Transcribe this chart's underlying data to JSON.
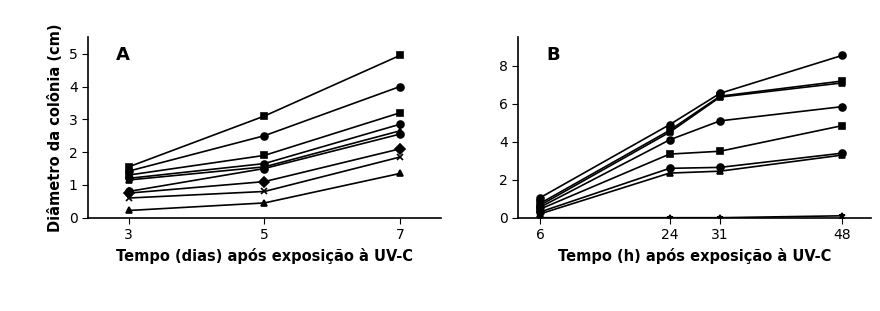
{
  "panel_A": {
    "label": "A",
    "x": [
      3,
      5,
      7
    ],
    "series": [
      {
        "y": [
          1.55,
          3.1,
          4.95
        ],
        "marker": "s"
      },
      {
        "y": [
          1.42,
          2.5,
          4.0
        ],
        "marker": "o"
      },
      {
        "y": [
          1.3,
          1.9,
          3.2
        ],
        "marker": "s"
      },
      {
        "y": [
          1.2,
          1.65,
          2.85
        ],
        "marker": "o"
      },
      {
        "y": [
          1.15,
          1.55,
          2.65
        ],
        "marker": "^"
      },
      {
        "y": [
          0.8,
          1.5,
          2.55
        ],
        "marker": "o"
      },
      {
        "y": [
          0.75,
          1.1,
          2.1
        ],
        "marker": "D"
      },
      {
        "y": [
          0.6,
          0.8,
          1.85
        ],
        "marker": "x"
      },
      {
        "y": [
          0.22,
          0.45,
          1.35
        ],
        "marker": "^"
      }
    ],
    "xlabel": "Tempo (dias) após exposição à UV-C",
    "ylabel": "Diâmetro da colônia (cm)",
    "ylim": [
      0,
      5.5
    ],
    "yticks": [
      0,
      1,
      2,
      3,
      4,
      5
    ],
    "xticks": [
      3,
      5,
      7
    ],
    "xlim": [
      2.4,
      7.6
    ]
  },
  "panel_B": {
    "label": "B",
    "x": [
      6,
      24,
      31,
      48
    ],
    "series": [
      {
        "y": [
          1.05,
          4.9,
          6.55,
          8.55
        ],
        "marker": "o"
      },
      {
        "y": [
          0.75,
          4.6,
          6.4,
          7.2
        ],
        "marker": "s"
      },
      {
        "y": [
          0.65,
          4.5,
          6.35,
          7.1
        ],
        "marker": "^"
      },
      {
        "y": [
          0.55,
          4.1,
          5.1,
          5.85
        ],
        "marker": "o"
      },
      {
        "y": [
          0.45,
          3.35,
          3.5,
          4.85
        ],
        "marker": "s"
      },
      {
        "y": [
          0.3,
          2.6,
          2.65,
          3.4
        ],
        "marker": "o"
      },
      {
        "y": [
          0.2,
          2.35,
          2.45,
          3.3
        ],
        "marker": "^"
      },
      {
        "y": [
          0.0,
          0.0,
          0.0,
          0.1
        ],
        "marker": "*"
      }
    ],
    "xlabel": "Tempo (h) após exposição à UV-C",
    "ylim": [
      0,
      9.5
    ],
    "yticks": [
      0,
      2,
      4,
      6,
      8
    ],
    "xticks": [
      6,
      24,
      31,
      48
    ],
    "xlim": [
      3,
      52
    ]
  },
  "line_color": "#000000",
  "marker_size": 5,
  "linewidth": 1.2,
  "tick_fontsize": 10,
  "label_fontsize": 10.5,
  "panel_label_fontsize": 13
}
